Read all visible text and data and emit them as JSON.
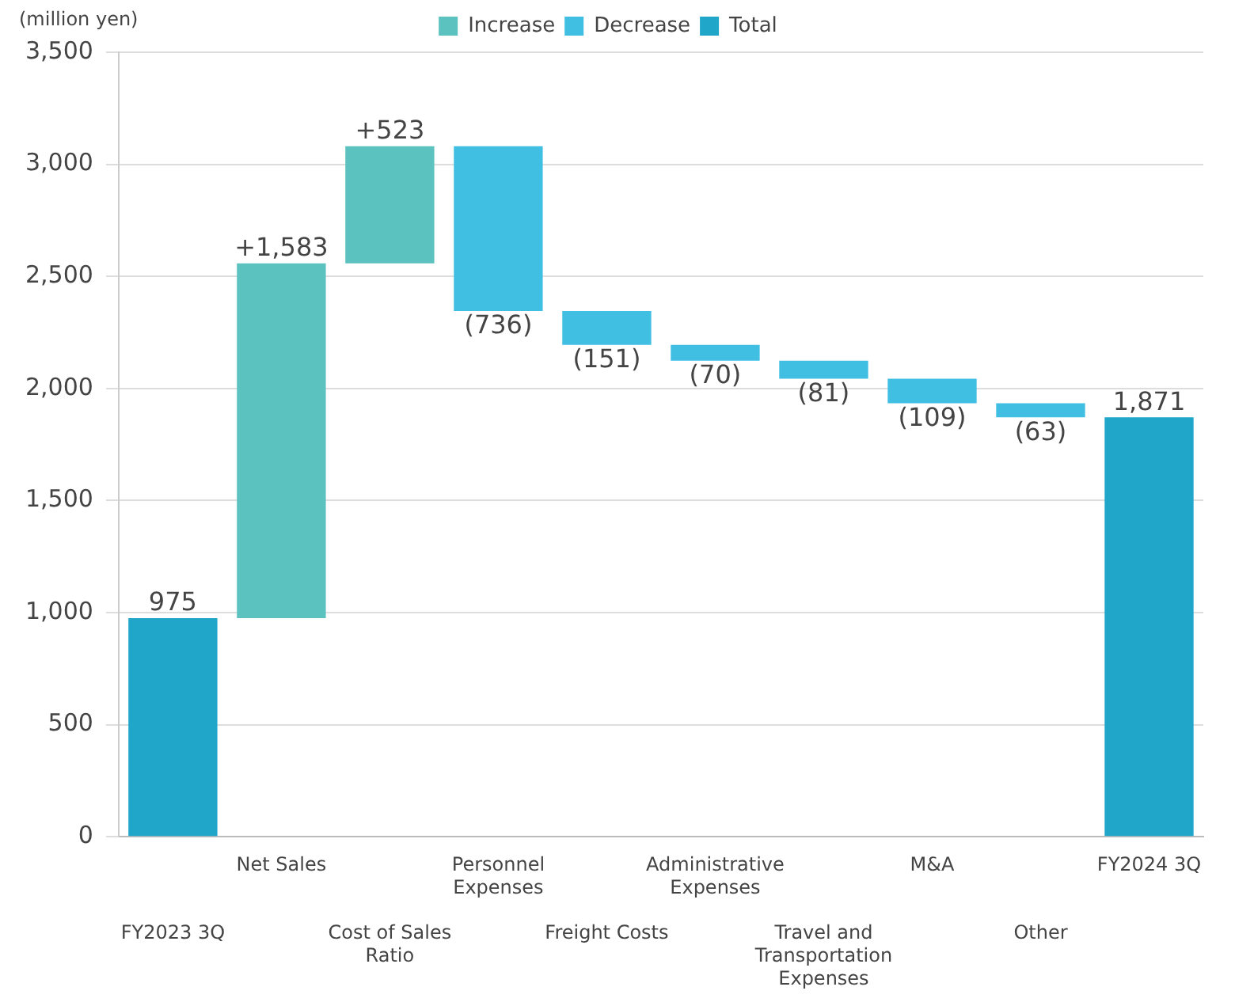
{
  "chart_data": {
    "type": "bar",
    "ylabel": "(million yen)",
    "categories": [
      "FY2023 3Q",
      "Net Sales",
      "Cost of Sales Ratio",
      "Personnel Expenses",
      "Freight Costs",
      "Administrative Expenses",
      "Travel and Transportation Expenses",
      "M&A",
      "Other",
      "FY2024 3Q"
    ],
    "series": [
      {
        "name": "Increase",
        "color": "#5cc2bf",
        "base": [
          null,
          975,
          2558,
          null,
          null,
          null,
          null,
          null,
          null,
          null
        ],
        "values": [
          null,
          1583,
          523,
          null,
          null,
          null,
          null,
          null,
          null,
          null
        ],
        "value_labels": [
          null,
          "+1,583",
          "+523",
          null,
          null,
          null,
          null,
          null,
          null,
          null
        ]
      },
      {
        "name": "Decrease",
        "color": "#41bfe3",
        "base": [
          null,
          null,
          null,
          3081,
          2345,
          2194,
          2124,
          2043,
          1934,
          null
        ],
        "values": [
          null,
          null,
          null,
          -736,
          -151,
          -70,
          -81,
          -109,
          -63,
          null
        ],
        "value_labels": [
          null,
          null,
          null,
          "(736)",
          "(151)",
          "(70)",
          "(81)",
          "(109)",
          "(63)",
          null
        ]
      },
      {
        "name": "Total",
        "color": "#1fa6c9",
        "base": [
          0,
          null,
          null,
          null,
          null,
          null,
          null,
          null,
          null,
          0
        ],
        "values": [
          975,
          null,
          null,
          null,
          null,
          null,
          null,
          null,
          null,
          1871
        ],
        "value_labels": [
          "975",
          null,
          null,
          null,
          null,
          null,
          null,
          null,
          null,
          "1,871"
        ]
      }
    ],
    "ylim": [
      0,
      3500
    ],
    "yticks": [
      0,
      500,
      {
        "value": 1000,
        "label": "1,000"
      },
      {
        "value": 1500,
        "label": "1,500"
      },
      {
        "value": 2000,
        "label": "2,000"
      },
      {
        "value": 2500,
        "label": "2,500"
      },
      {
        "value": 3000,
        "label": "3,000"
      },
      {
        "value": 3500,
        "label": "3,500"
      }
    ],
    "grid": "y",
    "legend": "top"
  }
}
